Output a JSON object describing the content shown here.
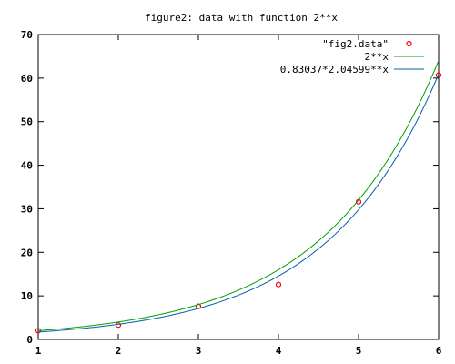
{
  "chart_data": {
    "type": "line",
    "title": "figure2: data with function 2**x",
    "xlabel": "",
    "ylabel": "",
    "xlim": [
      1,
      6
    ],
    "ylim": [
      0,
      70
    ],
    "x_ticks": [
      "1",
      "2",
      "3",
      "4",
      "5",
      "6"
    ],
    "y_ticks": [
      "0",
      "10",
      "20",
      "30",
      "40",
      "50",
      "60",
      "70"
    ],
    "grid": false,
    "legend_position": "top-right",
    "series": [
      {
        "name": "\"fig2.data\"",
        "kind": "scatter",
        "marker": "circle",
        "color": "#ff0000",
        "x": [
          1,
          2,
          3,
          4,
          5,
          6
        ],
        "y": [
          2.0,
          3.3,
          7.6,
          12.6,
          31.6,
          60.7
        ]
      },
      {
        "name": "2**x",
        "kind": "function",
        "color": "#00a000",
        "formula": "2**x"
      },
      {
        "name": "0.83037*2.04599**x",
        "kind": "function",
        "color": "#0060ad",
        "formula": "0.83037*2.04599**x"
      }
    ]
  }
}
